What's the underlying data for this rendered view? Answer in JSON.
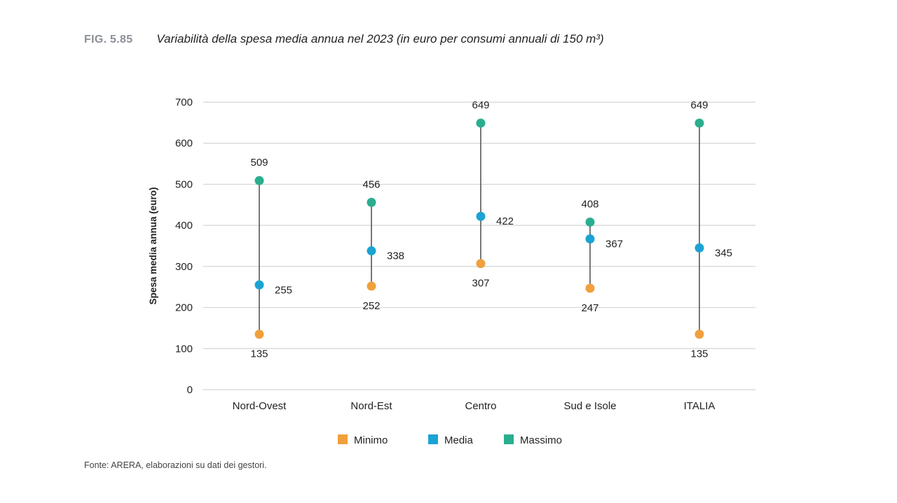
{
  "header": {
    "fig_number": "FIG. 5.85",
    "title": "Variabilità della spesa media annua nel 2023 (in euro per consumi annuali di 150 m³)"
  },
  "source": "Fonte: ARERA, elaborazioni su dati dei gestori.",
  "colors": {
    "minimo": "#F0A03C",
    "media": "#1BA3D4",
    "massimo": "#2BAE8F",
    "line": "#555555",
    "grid": "#d4d4d4"
  },
  "chart_data": {
    "type": "scatter",
    "title": "Variabilità della spesa media annua nel 2023 (in euro per consumi annuali di 150 m³)",
    "xlabel": "",
    "ylabel": "Spesa media annua (euro)",
    "ylim": [
      0,
      700
    ],
    "yticks": [
      0,
      100,
      200,
      300,
      400,
      500,
      600,
      700
    ],
    "grid": true,
    "legend_position": "bottom",
    "categories": [
      "Nord-Ovest",
      "Nord-Est",
      "Centro",
      "Sud e Isole",
      "ITALIA"
    ],
    "series": [
      {
        "name": "Minimo",
        "values": [
          135,
          252,
          307,
          247,
          135
        ]
      },
      {
        "name": "Media",
        "values": [
          255,
          338,
          422,
          367,
          345
        ]
      },
      {
        "name": "Massimo",
        "values": [
          509,
          456,
          649,
          408,
          649
        ]
      }
    ]
  }
}
